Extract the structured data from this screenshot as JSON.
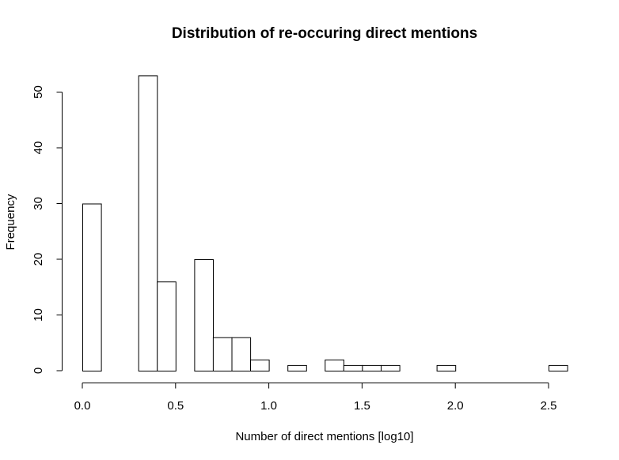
{
  "chart_data": {
    "type": "bar",
    "title": "Distribution of re-occuring direct mentions",
    "xlabel": "Number of direct mentions [log10]",
    "ylabel": "Frequency",
    "bin_width": 0.1,
    "xlim": [
      0,
      2.6
    ],
    "ylim": [
      0,
      53
    ],
    "x_ticks": [
      0.0,
      0.5,
      1.0,
      1.5,
      2.0,
      2.5
    ],
    "x_tick_labels": [
      "0.0",
      "0.5",
      "1.0",
      "1.5",
      "2.0",
      "2.5"
    ],
    "y_ticks": [
      0,
      10,
      20,
      30,
      40,
      50
    ],
    "y_tick_labels": [
      "0",
      "10",
      "20",
      "30",
      "40",
      "50"
    ],
    "bin_starts": [
      0.0,
      0.1,
      0.2,
      0.3,
      0.4,
      0.5,
      0.6,
      0.7,
      0.8,
      0.9,
      1.0,
      1.1,
      1.2,
      1.3,
      1.4,
      1.5,
      1.6,
      1.7,
      1.8,
      1.9,
      2.0,
      2.1,
      2.2,
      2.3,
      2.4,
      2.5
    ],
    "values": [
      30,
      0,
      0,
      53,
      16,
      0,
      20,
      6,
      6,
      2,
      0,
      1,
      0,
      2,
      1,
      1,
      1,
      0,
      0,
      1,
      0,
      0,
      0,
      0,
      0,
      1
    ],
    "grid": false,
    "legend": "none"
  }
}
